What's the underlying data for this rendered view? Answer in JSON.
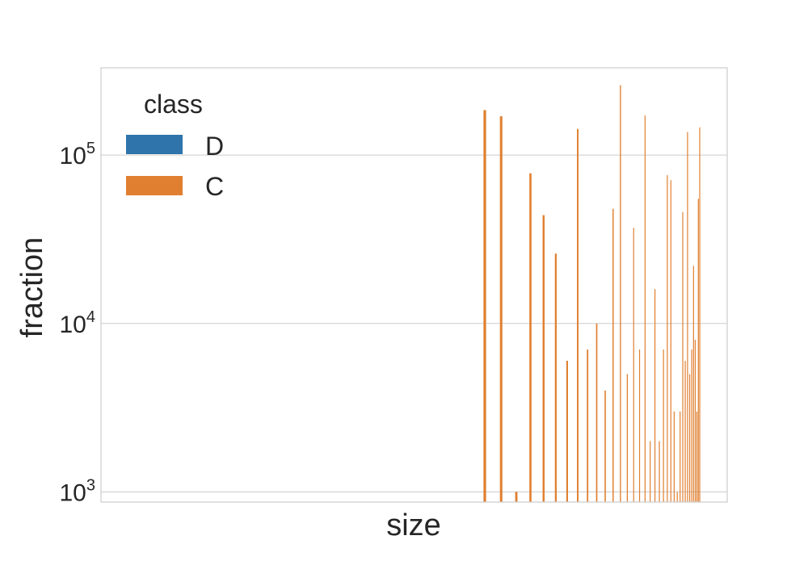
{
  "chart_data": {
    "type": "bar",
    "xlabel": "size",
    "ylabel": "fraction",
    "yscale": "log",
    "ylim": [
      870,
      330000
    ],
    "yticks": [
      {
        "value": 1000,
        "base": "10",
        "exp": "3"
      },
      {
        "value": 10000,
        "base": "10",
        "exp": "4"
      },
      {
        "value": 100000,
        "base": "10",
        "exp": "5"
      }
    ],
    "grid": true,
    "legend": {
      "title": "class",
      "placement": "top-left",
      "entries": [
        {
          "label": "D",
          "color": "#2f74aa"
        },
        {
          "label": "C",
          "color": "#e07f2f"
        }
      ]
    },
    "series": [
      {
        "name": "C",
        "color": "#e07f2f",
        "values": [
          185000,
          170000,
          1000,
          78000,
          44000,
          26000,
          6000,
          143000,
          7000,
          10000,
          4000,
          48000,
          260000,
          5000,
          37000,
          7000,
          172000,
          2000,
          16000,
          2000,
          7000,
          76000,
          71000,
          3000,
          1000,
          3000,
          46000,
          6000,
          137000,
          5000,
          7000,
          22000,
          8000,
          3000,
          55000,
          146000
        ]
      }
    ]
  }
}
